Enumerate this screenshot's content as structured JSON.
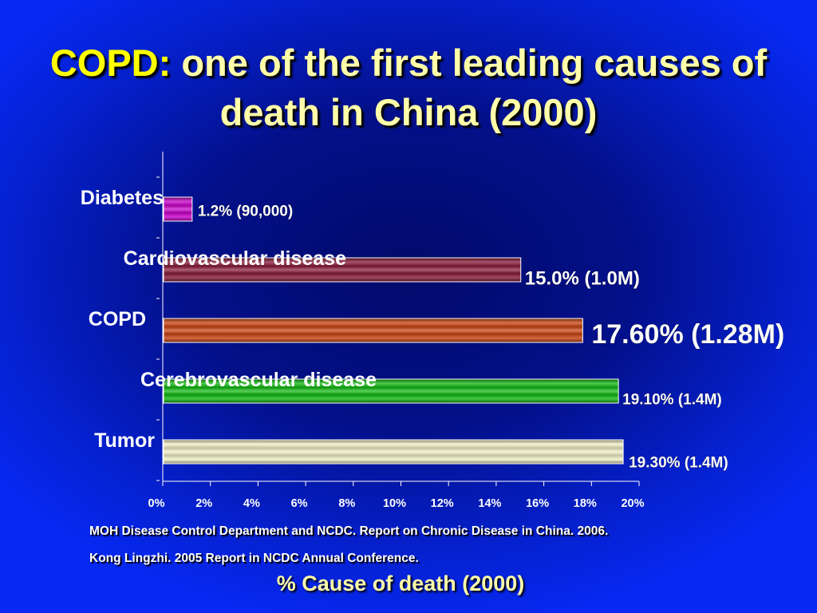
{
  "slide": {
    "title_highlight": "COPD:",
    "title_rest": " one of the first leading causes of death in China (2000)",
    "references": [
      "MOH Disease Control Department and NCDC. Report on Chronic Disease in China. 2006.",
      "Kong Lingzhi. 2005 Report in NCDC Annual Conference."
    ],
    "xaxis_title": "% Cause of death (2000)"
  },
  "chart_data": {
    "type": "bar",
    "orientation": "horizontal",
    "categories": [
      "Diabetes",
      "Cardiovascular disease",
      "COPD",
      "Cerebrovascular disease",
      "Tumor"
    ],
    "values": [
      1.2,
      15.0,
      17.6,
      19.1,
      19.3
    ],
    "data_labels": [
      "1.2% (90,000)",
      "15.0% (1.0M)",
      "17.60% (1.28M)",
      "19.10% (1.4M)",
      "19.30% (1.4M)"
    ],
    "colors": [
      "#cc00cc",
      "#8a1a3a",
      "#cc4411",
      "#11bb11",
      "#f3f1c8"
    ],
    "x_ticks": [
      "0%",
      "2%",
      "4%",
      "6%",
      "8%",
      "10%",
      "12%",
      "14%",
      "16%",
      "18%",
      "20%"
    ],
    "xlim": [
      0,
      20
    ],
    "grid": false,
    "legend": "none"
  }
}
